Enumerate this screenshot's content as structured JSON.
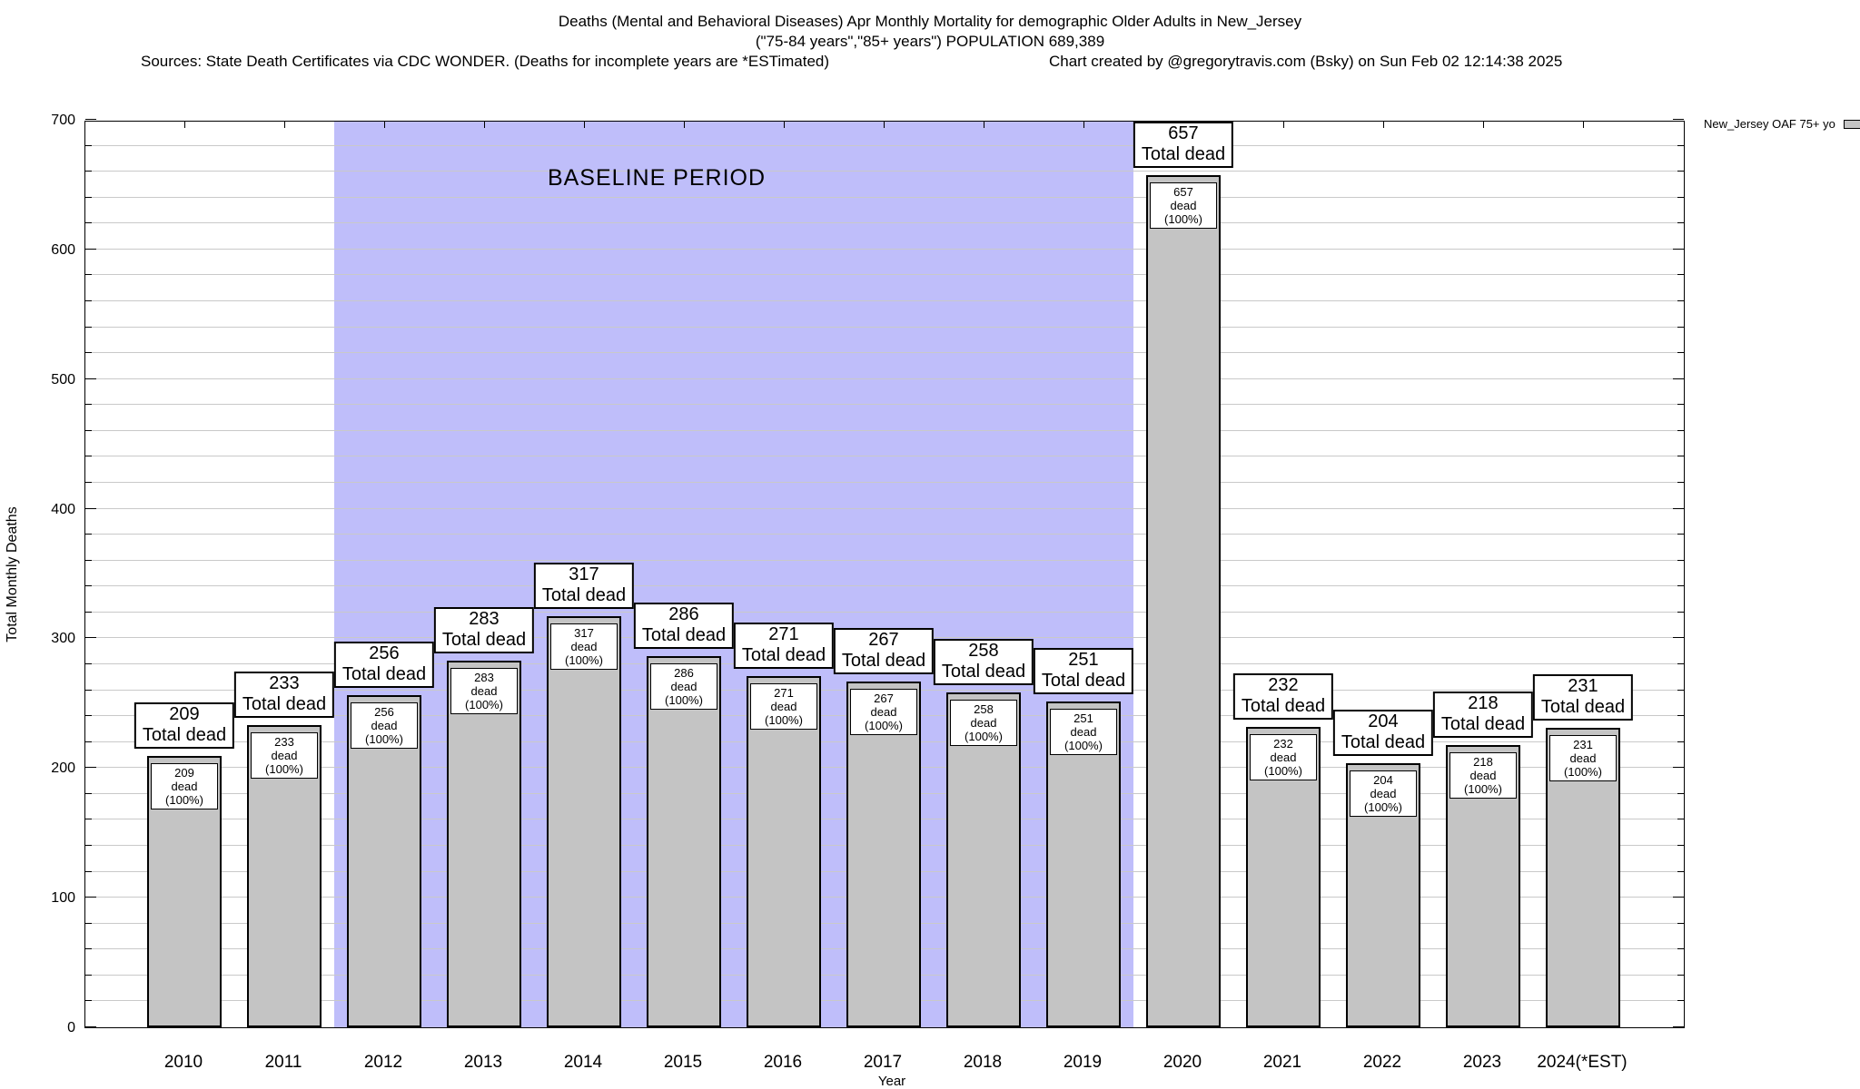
{
  "header": {
    "title_line1": "Deaths (Mental and Behavioral Diseases) Apr Monthly Mortality for demographic Older Adults in New_Jersey",
    "title_line2": "(\"75-84 years\",\"85+ years\") POPULATION 689,389",
    "sources": "Sources: State Death Certificates via CDC WONDER. (Deaths for incomplete years are *ESTimated)",
    "credit": "Chart created by @gregorytravis.com (Bsky) on Sun Feb 02 12:14:38 2025"
  },
  "legend": {
    "label": "New_Jersey OAF 75+ yo"
  },
  "chart_data": {
    "type": "bar",
    "title": "Deaths (Mental and Behavioral Diseases) Apr Monthly Mortality for demographic Older Adults in New_Jersey",
    "subtitle": "(\"75-84 years\",\"85+ years\") POPULATION 689,389",
    "xlabel": "Year",
    "ylabel": "Total Monthly Deaths",
    "ylim": [
      0,
      700
    ],
    "ytick_major": 100,
    "ytick_minor": 20,
    "grid": true,
    "legend_position": "top-right-outside",
    "categories": [
      "2010",
      "2011",
      "2012",
      "2013",
      "2014",
      "2015",
      "2016",
      "2017",
      "2018",
      "2019",
      "2020",
      "2021",
      "2022",
      "2023",
      "2024(*EST)"
    ],
    "values": [
      209,
      233,
      256,
      283,
      317,
      286,
      271,
      267,
      258,
      251,
      657,
      232,
      204,
      218,
      231
    ],
    "bar_top_label_suffix": "Total dead",
    "bar_inner_label_suffix": "dead (100%)",
    "baseline_band": {
      "label": "BASELINE PERIOD",
      "start_category": "2012",
      "end_category": "2019",
      "start_index": 2,
      "end_index": 9
    },
    "colors": {
      "bar_fill": "#c4c4c4",
      "bar_border": "#000000",
      "baseline_fill": "#bfbefa",
      "grid": "#c9c9c9"
    }
  }
}
